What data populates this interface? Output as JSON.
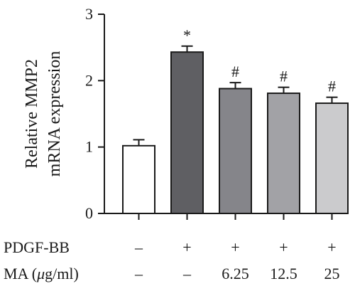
{
  "chart_data": {
    "type": "bar",
    "ylabel": [
      "Relative MMP2",
      "mRNA expression"
    ],
    "ylim": [
      0,
      3
    ],
    "yticks": [
      0,
      1,
      2,
      3
    ],
    "grid": false,
    "bars": [
      {
        "value": 1.02,
        "error": 0.09,
        "color": "#ffffff",
        "marker": ""
      },
      {
        "value": 2.43,
        "error": 0.09,
        "color": "#5f5f63",
        "marker": "*"
      },
      {
        "value": 1.88,
        "error": 0.09,
        "color": "#85858a",
        "marker": "#"
      },
      {
        "value": 1.81,
        "error": 0.09,
        "color": "#a2a2a6",
        "marker": "#"
      },
      {
        "value": 1.66,
        "error": 0.09,
        "color": "#cbcbcd",
        "marker": "#"
      }
    ],
    "conditions": [
      {
        "label": "PDGF-BB",
        "values": [
          "–",
          "+",
          "+",
          "+",
          "+"
        ]
      },
      {
        "label_prefix": "MA (",
        "label_mu": "μ",
        "label_suffix": "g/ml)",
        "values": [
          "–",
          "–",
          "6.25",
          "12.5",
          "25"
        ]
      }
    ]
  }
}
